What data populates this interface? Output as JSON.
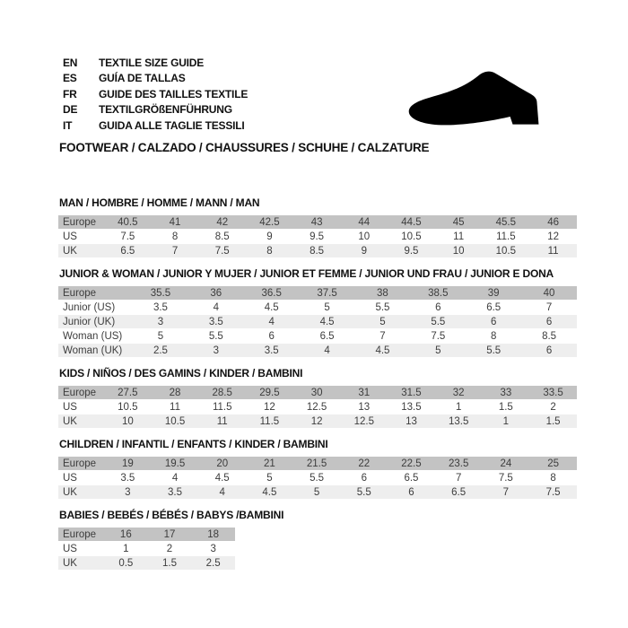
{
  "page": {
    "colors": {
      "background": "#ffffff",
      "header_row_bg": "#c3c3c3",
      "alt_row_bg": "#eeeeee",
      "table_text": "#3d3d3d",
      "heading_text": "#111111",
      "shoe_icon_color": "#000000"
    }
  },
  "header": {
    "languages": [
      {
        "code": "EN",
        "label": "TEXTILE SIZE GUIDE"
      },
      {
        "code": "ES",
        "label": "GUÍA DE TALLAS"
      },
      {
        "code": "FR",
        "label": "GUIDE DES TAILLES TEXTILE"
      },
      {
        "code": "DE",
        "label": "TEXTILGRÖßENFÜHRUNG"
      },
      {
        "code": "IT",
        "label": "GUIDA ALLE TAGLIE TESSILI"
      }
    ],
    "footwear_line": "FOOTWEAR / CALZADO / CHAUSSURES / SCHUHE / CALZATURE",
    "icon": "dress-shoe-silhouette"
  },
  "sections": [
    {
      "title": "MAN / HOMBRE / HOMME / MANN / MAN",
      "rows": [
        {
          "label": "Europe",
          "values": [
            "40.5",
            "41",
            "42",
            "42.5",
            "43",
            "44",
            "44.5",
            "45",
            "45.5",
            "46"
          ]
        },
        {
          "label": "US",
          "values": [
            "7.5",
            "8",
            "8.5",
            "9",
            "9.5",
            "10",
            "10.5",
            "11",
            "11.5",
            "12"
          ]
        },
        {
          "label": "UK",
          "values": [
            "6.5",
            "7",
            "7.5",
            "8",
            "8.5",
            "9",
            "9.5",
            "10",
            "10.5",
            "11"
          ]
        }
      ]
    },
    {
      "title": "JUNIOR & WOMAN / JUNIOR Y MUJER / JUNIOR ET FEMME / JUNIOR UND FRAU / JUNIOR E DONA",
      "rows": [
        {
          "label": "Europe",
          "values": [
            "35.5",
            "36",
            "36.5",
            "37.5",
            "38",
            "38.5",
            "39",
            "40"
          ]
        },
        {
          "label": "Junior (US)",
          "values": [
            "3.5",
            "4",
            "4.5",
            "5",
            "5.5",
            "6",
            "6.5",
            "7"
          ]
        },
        {
          "label": "Junior (UK)",
          "values": [
            "3",
            "3.5",
            "4",
            "4.5",
            "5",
            "5.5",
            "6",
            "6"
          ]
        },
        {
          "label": "Woman (US)",
          "values": [
            "5",
            "5.5",
            "6",
            "6.5",
            "7",
            "7.5",
            "8",
            "8.5"
          ]
        },
        {
          "label": "Woman (UK)",
          "values": [
            "2.5",
            "3",
            "3.5",
            "4",
            "4.5",
            "5",
            "5.5",
            "6"
          ]
        }
      ]
    },
    {
      "title": "KIDS / NIÑOS / DES GAMINS / KINDER / BAMBINI",
      "rows": [
        {
          "label": "Europe",
          "values": [
            "27.5",
            "28",
            "28.5",
            "29.5",
            "30",
            "31",
            "31.5",
            "32",
            "33",
            "33.5"
          ]
        },
        {
          "label": "US",
          "values": [
            "10.5",
            "11",
            "11.5",
            "12",
            "12.5",
            "13",
            "13.5",
            "1",
            "1.5",
            "2"
          ]
        },
        {
          "label": "UK",
          "values": [
            "10",
            "10.5",
            "11",
            "11.5",
            "12",
            "12.5",
            "13",
            "13.5",
            "1",
            "1.5"
          ]
        }
      ]
    },
    {
      "title": "CHILDREN / INFANTIL / ENFANTS / KINDER / BAMBINI",
      "rows": [
        {
          "label": "Europe",
          "values": [
            "19",
            "19.5",
            "20",
            "21",
            "21.5",
            "22",
            "22.5",
            "23.5",
            "24",
            "25"
          ]
        },
        {
          "label": "US",
          "values": [
            "3.5",
            "4",
            "4.5",
            "5",
            "5.5",
            "6",
            "6.5",
            "7",
            "7.5",
            "8"
          ]
        },
        {
          "label": "UK",
          "values": [
            "3",
            "3.5",
            "4",
            "4.5",
            "5",
            "5.5",
            "6",
            "6.5",
            "7",
            "7.5"
          ]
        }
      ]
    },
    {
      "title": "BABIES / BEBÉS / BÉBÉS / BABYS /BAMBINI",
      "rows": [
        {
          "label": "Europe",
          "values": [
            "16",
            "17",
            "18"
          ]
        },
        {
          "label": "US",
          "values": [
            "1",
            "2",
            "3"
          ]
        },
        {
          "label": "UK",
          "values": [
            "0.5",
            "1.5",
            "2.5"
          ]
        }
      ]
    }
  ]
}
